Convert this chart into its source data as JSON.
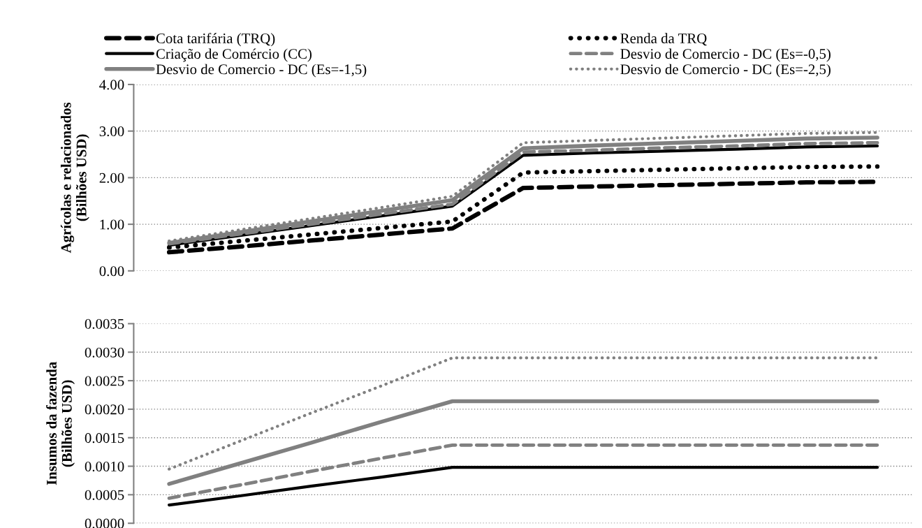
{
  "chart_data": [
    {
      "type": "line",
      "ylabel": "Agrícolas e relacionados\n(Bilhões USD)",
      "categories": [
        null,
        null,
        null,
        null,
        null,
        null,
        null,
        null,
        null,
        null,
        null
      ],
      "series": [
        {
          "name": "Cota tarifária (TRQ)",
          "color": "#000000",
          "line_style": "dashed",
          "values": [
            0.4,
            0.52,
            0.65,
            0.78,
            0.91,
            1.78,
            1.81,
            1.84,
            1.87,
            1.9,
            1.91
          ]
        },
        {
          "name": "Renda da TRQ",
          "color": "#000000",
          "line_style": "dotted",
          "values": [
            0.5,
            0.64,
            0.78,
            0.92,
            1.06,
            2.11,
            2.14,
            2.17,
            2.2,
            2.23,
            2.24
          ]
        },
        {
          "name": "Criação de Comércio (CC)",
          "color": "#000000",
          "line_style": "solid",
          "values": [
            0.55,
            0.76,
            0.97,
            1.18,
            1.39,
            2.48,
            2.53,
            2.57,
            2.61,
            2.66,
            2.68
          ]
        },
        {
          "name": "Desvio de Comercio - DC (Es=-0,5)",
          "color": "#808080",
          "line_style": "dashed",
          "values": [
            0.58,
            0.79,
            1.0,
            1.22,
            1.43,
            2.55,
            2.59,
            2.64,
            2.68,
            2.73,
            2.75
          ]
        },
        {
          "name": "Desvio de Comercio - DC (Es=-1,5)",
          "color": "#808080",
          "line_style": "solid",
          "values": [
            0.6,
            0.83,
            1.06,
            1.29,
            1.52,
            2.63,
            2.69,
            2.74,
            2.79,
            2.84,
            2.86
          ]
        },
        {
          "name": "Desvio de Comercio - DC (Es=-2,5)",
          "color": "#808080",
          "line_style": "dotted",
          "values": [
            0.64,
            0.88,
            1.12,
            1.36,
            1.6,
            2.75,
            2.8,
            2.85,
            2.9,
            2.95,
            2.97
          ]
        }
      ],
      "ylim": [
        0,
        4
      ],
      "yticks": [
        {
          "value": 0,
          "label": "0.00"
        },
        {
          "value": 1,
          "label": "1.00"
        },
        {
          "value": 2,
          "label": "2.00"
        },
        {
          "value": 3,
          "label": "3.00"
        },
        {
          "value": 4,
          "label": "4.00"
        }
      ],
      "grid": "y",
      "legend": "top",
      "tick_labels": "y"
    },
    {
      "type": "line",
      "ylabel": "Insumos da fazenda\n(Bilhões USD)",
      "categories": [
        null,
        null,
        null,
        null,
        null,
        null,
        null,
        null,
        null,
        null,
        null
      ],
      "series": [
        {
          "color": "#000000",
          "line_style": "solid",
          "values": [
            0.00032,
            0.00048,
            0.00065,
            0.00081,
            0.00098,
            0.00098,
            0.00098,
            0.00098,
            0.00098,
            0.00098,
            0.00098
          ]
        },
        {
          "color": "#808080",
          "line_style": "dashed",
          "values": [
            0.00044,
            0.00067,
            0.00091,
            0.00114,
            0.00137,
            0.00137,
            0.00137,
            0.00137,
            0.00137,
            0.00137,
            0.00137
          ]
        },
        {
          "color": "#808080",
          "line_style": "solid",
          "values": [
            0.00069,
            0.00105,
            0.00141,
            0.00178,
            0.00214,
            0.00214,
            0.00214,
            0.00214,
            0.00214,
            0.00214,
            0.00214
          ]
        },
        {
          "color": "#808080",
          "line_style": "dotted",
          "values": [
            0.00095,
            0.00144,
            0.00193,
            0.00241,
            0.0029,
            0.0029,
            0.0029,
            0.0029,
            0.0029,
            0.0029,
            0.0029
          ]
        }
      ],
      "ylim": [
        0,
        0.0035
      ],
      "yticks": [
        {
          "value": 0,
          "label": "0.0000"
        },
        {
          "value": 0.0005,
          "label": "0.0005"
        },
        {
          "value": 0.001,
          "label": "0.0010"
        },
        {
          "value": 0.0015,
          "label": "0.0015"
        },
        {
          "value": 0.002,
          "label": "0.0020"
        },
        {
          "value": 0.0025,
          "label": "0.0025"
        },
        {
          "value": 0.003,
          "label": "0.0030"
        },
        {
          "value": 0.0035,
          "label": "0.0035"
        }
      ],
      "grid": "y",
      "tick_labels": "y"
    }
  ]
}
